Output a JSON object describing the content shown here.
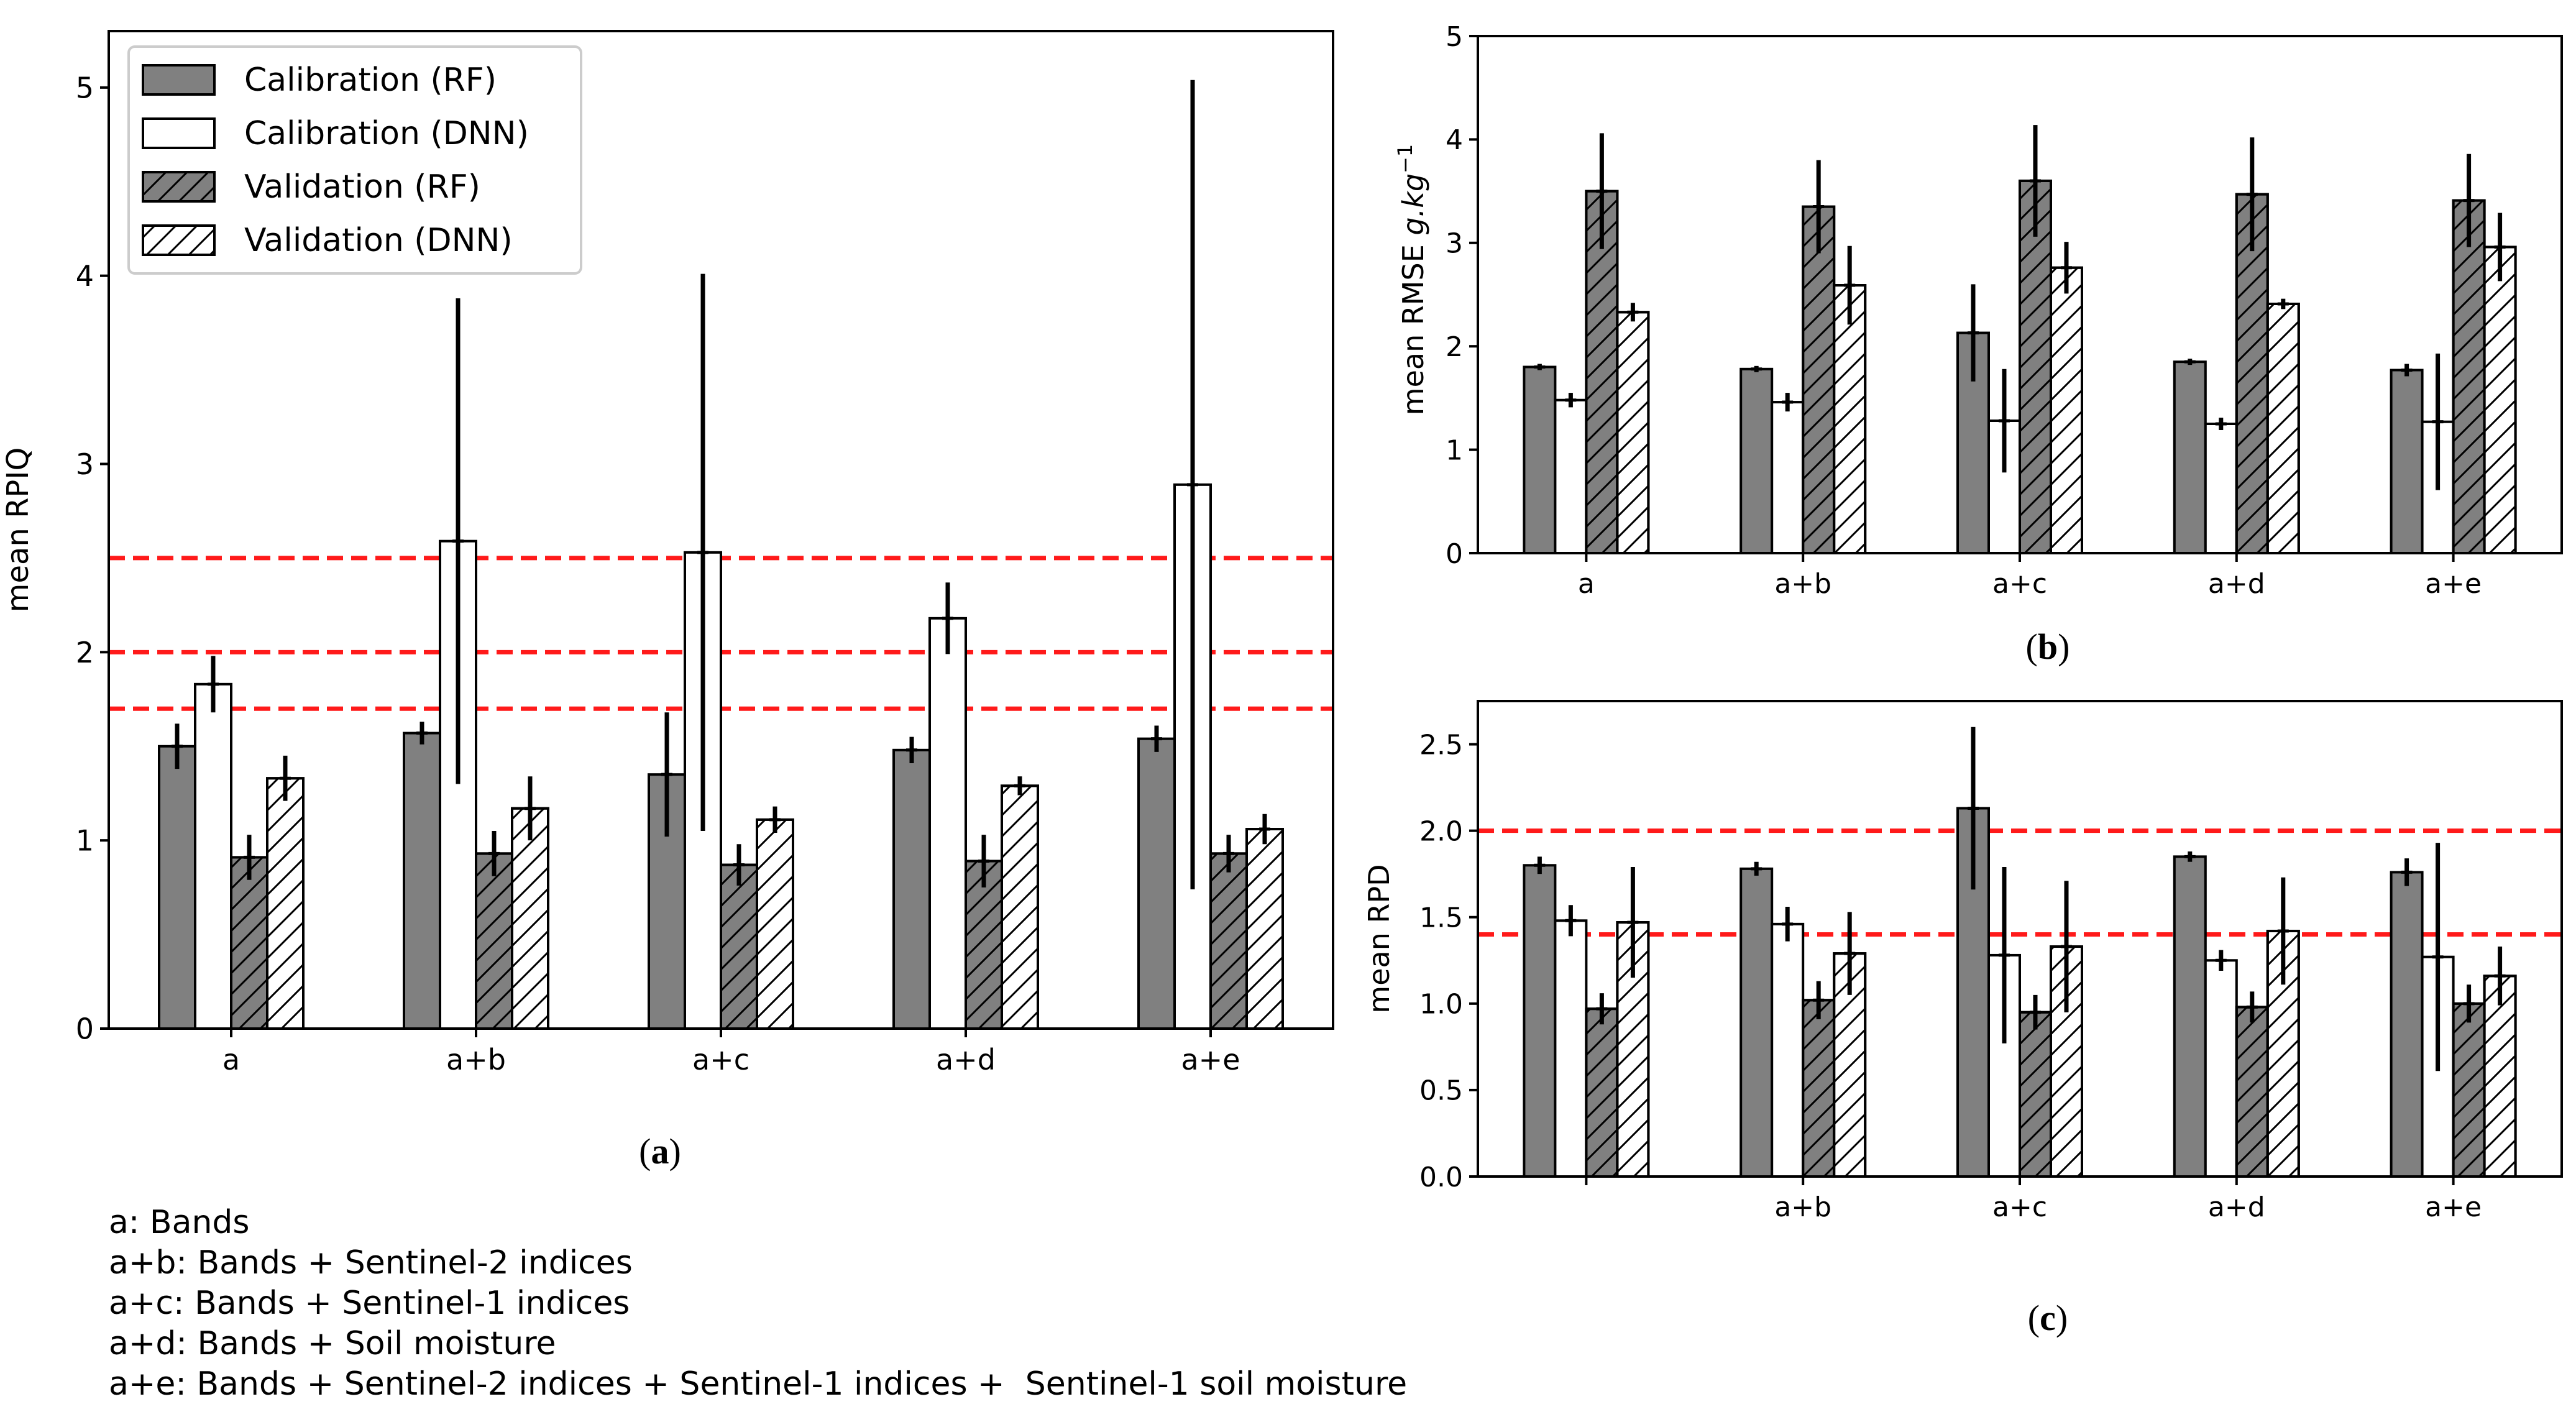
{
  "colors": {
    "rf": "#808080",
    "dnn": "#ffffff",
    "threshold": "#ff1a1a",
    "edge": "#000000"
  },
  "legend": [
    {
      "label": "Calibration (RF)",
      "fill": "rf",
      "hatch": false
    },
    {
      "label": "Calibration (DNN)",
      "fill": "dnn",
      "hatch": false
    },
    {
      "label": "Validation (RF)",
      "fill": "rf",
      "hatch": true
    },
    {
      "label": "Validation (DNN)",
      "fill": "dnn",
      "hatch": true
    }
  ],
  "chart_data": [
    {
      "id": "a",
      "type": "bar",
      "panel_label": "a",
      "ylabel": "mean RPIQ",
      "ylim": [
        0,
        5.3
      ],
      "yticks": [
        0,
        1,
        2,
        3,
        4,
        5
      ],
      "yticklabels": [
        "0",
        "1",
        "2",
        "3",
        "4",
        "5"
      ],
      "categories": [
        "a",
        "a+b",
        "a+c",
        "a+d",
        "a+e"
      ],
      "hlines": [
        1.7,
        2.0,
        2.5
      ],
      "series": [
        {
          "name": "Calibration (RF)",
          "values": [
            1.5,
            1.57,
            1.35,
            1.48,
            1.54
          ],
          "errors": [
            0.12,
            0.06,
            0.33,
            0.07,
            0.07
          ]
        },
        {
          "name": "Calibration (DNN)",
          "values": [
            1.83,
            2.59,
            2.53,
            2.18,
            2.89
          ],
          "errors": [
            0.15,
            1.29,
            1.48,
            0.19,
            2.15
          ]
        },
        {
          "name": "Validation (RF)",
          "values": [
            0.91,
            0.93,
            0.87,
            0.89,
            0.93
          ],
          "errors": [
            0.12,
            0.12,
            0.11,
            0.14,
            0.1
          ]
        },
        {
          "name": "Validation (DNN)",
          "values": [
            1.33,
            1.17,
            1.11,
            1.29,
            1.06
          ],
          "errors": [
            0.12,
            0.17,
            0.07,
            0.05,
            0.08
          ]
        }
      ]
    },
    {
      "id": "b",
      "type": "bar",
      "panel_label": "b",
      "ylabel_text": "mean RMSE ",
      "ylabel_math": "g.kg",
      "ylabel_sup": "−1",
      "ylim": [
        0,
        5
      ],
      "yticks": [
        0,
        1,
        2,
        3,
        4,
        5
      ],
      "yticklabels": [
        "0",
        "1",
        "2",
        "3",
        "4",
        "5"
      ],
      "categories": [
        "a",
        "a+b",
        "a+c",
        "a+d",
        "a+e"
      ],
      "hlines": [],
      "series": [
        {
          "name": "Calibration (RF)",
          "values": [
            1.8,
            1.78,
            2.13,
            1.85,
            1.77
          ],
          "errors": [
            0.03,
            0.03,
            0.47,
            0.03,
            0.06
          ]
        },
        {
          "name": "Calibration (DNN)",
          "values": [
            1.48,
            1.46,
            1.28,
            1.25,
            1.27
          ],
          "errors": [
            0.07,
            0.09,
            0.5,
            0.06,
            0.66
          ]
        },
        {
          "name": "Validation (RF)",
          "values": [
            3.5,
            3.35,
            3.6,
            3.47,
            3.41
          ],
          "errors": [
            0.56,
            0.45,
            0.54,
            0.55,
            0.45
          ]
        },
        {
          "name": "Validation (DNN)",
          "values": [
            2.33,
            2.59,
            2.76,
            2.41,
            2.96
          ],
          "errors": [
            0.09,
            0.38,
            0.25,
            0.05,
            0.33
          ]
        }
      ]
    },
    {
      "id": "c",
      "type": "bar",
      "panel_label": "c",
      "ylabel": "mean RPD",
      "ylim": [
        0,
        2.75
      ],
      "yticks": [
        0,
        0.5,
        1.0,
        1.5,
        2.0,
        2.5
      ],
      "yticklabels": [
        "0.0",
        "0.5",
        "1.0",
        "1.5",
        "2.0",
        "2.5"
      ],
      "categories": [
        "",
        "a+b",
        "a+c",
        "a+d",
        "a+e"
      ],
      "hlines": [
        1.4,
        2.0
      ],
      "series": [
        {
          "name": "Calibration (RF)",
          "values": [
            1.8,
            1.78,
            2.13,
            1.85,
            1.76
          ],
          "errors": [
            0.05,
            0.04,
            0.47,
            0.03,
            0.08
          ]
        },
        {
          "name": "Calibration (DNN)",
          "values": [
            1.48,
            1.46,
            1.28,
            1.25,
            1.27
          ],
          "errors": [
            0.09,
            0.1,
            0.51,
            0.06,
            0.66
          ]
        },
        {
          "name": "Validation (RF)",
          "values": [
            0.97,
            1.02,
            0.95,
            0.98,
            1.0
          ],
          "errors": [
            0.09,
            0.11,
            0.1,
            0.09,
            0.11
          ]
        },
        {
          "name": "Validation (DNN)",
          "values": [
            1.47,
            1.29,
            1.33,
            1.42,
            1.16
          ],
          "errors": [
            0.32,
            0.24,
            0.38,
            0.31,
            0.17
          ]
        }
      ]
    }
  ],
  "footnotes": [
    "a: Bands",
    "a+b: Bands + Sentinel-2 indices",
    "a+c: Bands + Sentinel-1 indices",
    "a+d: Bands + Soil moisture",
    "a+e: Bands + Sentinel-2 indices + Sentinel-1 indices +  Sentinel-1 soil moisture"
  ]
}
